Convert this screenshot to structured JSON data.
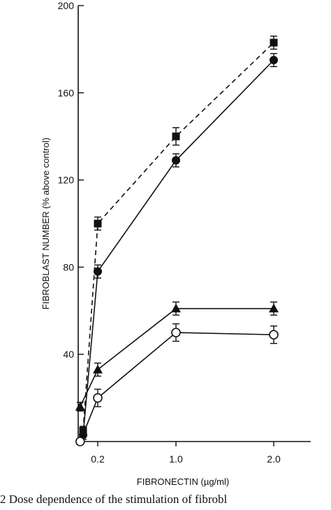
{
  "chart_data": {
    "type": "line",
    "xlabel": "FIBRONECTIN (µg/ml)",
    "ylabel": "FIBROBLAST NUMBER (% above control)",
    "xlim": [
      0,
      3.6
    ],
    "ylim": [
      0,
      200
    ],
    "x_ticks": [
      {
        "value": 0.2,
        "label": "0.2"
      },
      {
        "value": 1.0,
        "label": "1.0"
      },
      {
        "value": 2.0,
        "label": "2.0"
      }
    ],
    "y_ticks": [
      {
        "value": 40,
        "label": "40"
      },
      {
        "value": 80,
        "label": "80"
      },
      {
        "value": 120,
        "label": "120"
      },
      {
        "value": 160,
        "label": "160"
      },
      {
        "value": 200,
        "label": "200"
      }
    ],
    "series": [
      {
        "marker": "square-filled",
        "line": "dashed",
        "x": [
          0.05,
          0.2,
          1.0,
          2.0
        ],
        "y": [
          5,
          100,
          140,
          183
        ],
        "err": [
          2,
          3,
          4,
          3
        ]
      },
      {
        "marker": "circle-filled",
        "line": "solid",
        "x": [
          0.05,
          0.2,
          1.0,
          2.0
        ],
        "y": [
          3,
          78,
          129,
          175
        ],
        "err": [
          2,
          3,
          3,
          3
        ]
      },
      {
        "marker": "triangle-filled",
        "line": "solid",
        "x": [
          0.02,
          0.2,
          1.0,
          2.0
        ],
        "y": [
          16,
          33,
          61,
          61
        ],
        "err": [
          2,
          3,
          3,
          3
        ]
      },
      {
        "marker": "circle-open",
        "line": "solid",
        "x": [
          0.02,
          0.2,
          1.0,
          2.0
        ],
        "y": [
          0,
          20,
          50,
          49
        ],
        "err": [
          1,
          4,
          4,
          4
        ]
      }
    ]
  },
  "caption": {
    "text": "2   Dose dependence of the stimulation of fibrobl"
  }
}
